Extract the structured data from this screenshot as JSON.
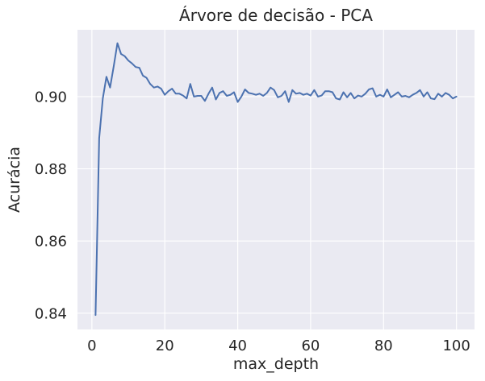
{
  "chart_data": {
    "type": "line",
    "title": "Árvore de decisão - PCA",
    "xlabel": "max_depth",
    "ylabel": "Acurácia",
    "xlim": [
      -3.95,
      104.95
    ],
    "ylim": [
      0.8355,
      0.9185
    ],
    "xticks": [
      0,
      20,
      40,
      60,
      80,
      100
    ],
    "yticks": [
      0.84,
      0.86,
      0.88,
      0.9
    ],
    "xtick_labels": [
      "0",
      "20",
      "40",
      "60",
      "80",
      "100"
    ],
    "ytick_labels": [
      "0.84",
      "0.86",
      "0.88",
      "0.90"
    ],
    "grid": true,
    "colors": {
      "background": "#eaeaf2",
      "grid": "#ffffff",
      "line": "#4c72b0"
    },
    "series": [
      {
        "x": [
          1,
          2,
          3,
          4,
          5,
          6,
          7,
          8,
          9,
          10,
          11,
          12,
          13,
          14,
          15,
          16,
          17,
          18,
          19,
          20,
          21,
          22,
          23,
          24,
          25,
          26,
          27,
          28,
          29,
          30,
          31,
          32,
          33,
          34,
          35,
          36,
          37,
          38,
          39,
          40,
          41,
          42,
          43,
          44,
          45,
          46,
          47,
          48,
          49,
          50,
          51,
          52,
          53,
          54,
          55,
          56,
          57,
          58,
          59,
          60,
          61,
          62,
          63,
          64,
          65,
          66,
          67,
          68,
          69,
          70,
          71,
          72,
          73,
          74,
          75,
          76,
          77,
          78,
          79,
          80,
          81,
          82,
          83,
          84,
          85,
          86,
          87,
          88,
          89,
          90,
          91,
          92,
          93,
          94,
          95,
          96,
          97,
          98,
          99,
          100
        ],
        "values": [
          0.8395,
          0.8885,
          0.8995,
          0.9055,
          0.9025,
          0.9085,
          0.9148,
          0.9118,
          0.9112,
          0.91,
          0.9092,
          0.9082,
          0.908,
          0.9058,
          0.9052,
          0.9035,
          0.9025,
          0.9028,
          0.9022,
          0.9005,
          0.9015,
          0.9022,
          0.9008,
          0.9008,
          0.9003,
          0.8995,
          0.9035,
          0.9,
          0.9002,
          0.9002,
          0.8988,
          0.9008,
          0.9025,
          0.8992,
          0.901,
          0.9015,
          0.9002,
          0.9005,
          0.9012,
          0.8985,
          0.9,
          0.902,
          0.901,
          0.9008,
          0.9005,
          0.9008,
          0.9002,
          0.901,
          0.9025,
          0.9018,
          0.8998,
          0.9002,
          0.9015,
          0.8985,
          0.9018,
          0.9008,
          0.901,
          0.9005,
          0.9008,
          0.9003,
          0.9018,
          0.9,
          0.9003,
          0.9015,
          0.9015,
          0.9012,
          0.8995,
          0.8992,
          0.9012,
          0.8998,
          0.901,
          0.8995,
          0.9003,
          0.9,
          0.9008,
          0.902,
          0.9023,
          0.9,
          0.9005,
          0.9,
          0.902,
          0.8998,
          0.9005,
          0.9012,
          0.9,
          0.9002,
          0.8998,
          0.9005,
          0.901,
          0.9018,
          0.9,
          0.9012,
          0.8995,
          0.8993,
          0.9008,
          0.9,
          0.901,
          0.9005,
          0.8995,
          0.9
        ]
      }
    ]
  }
}
